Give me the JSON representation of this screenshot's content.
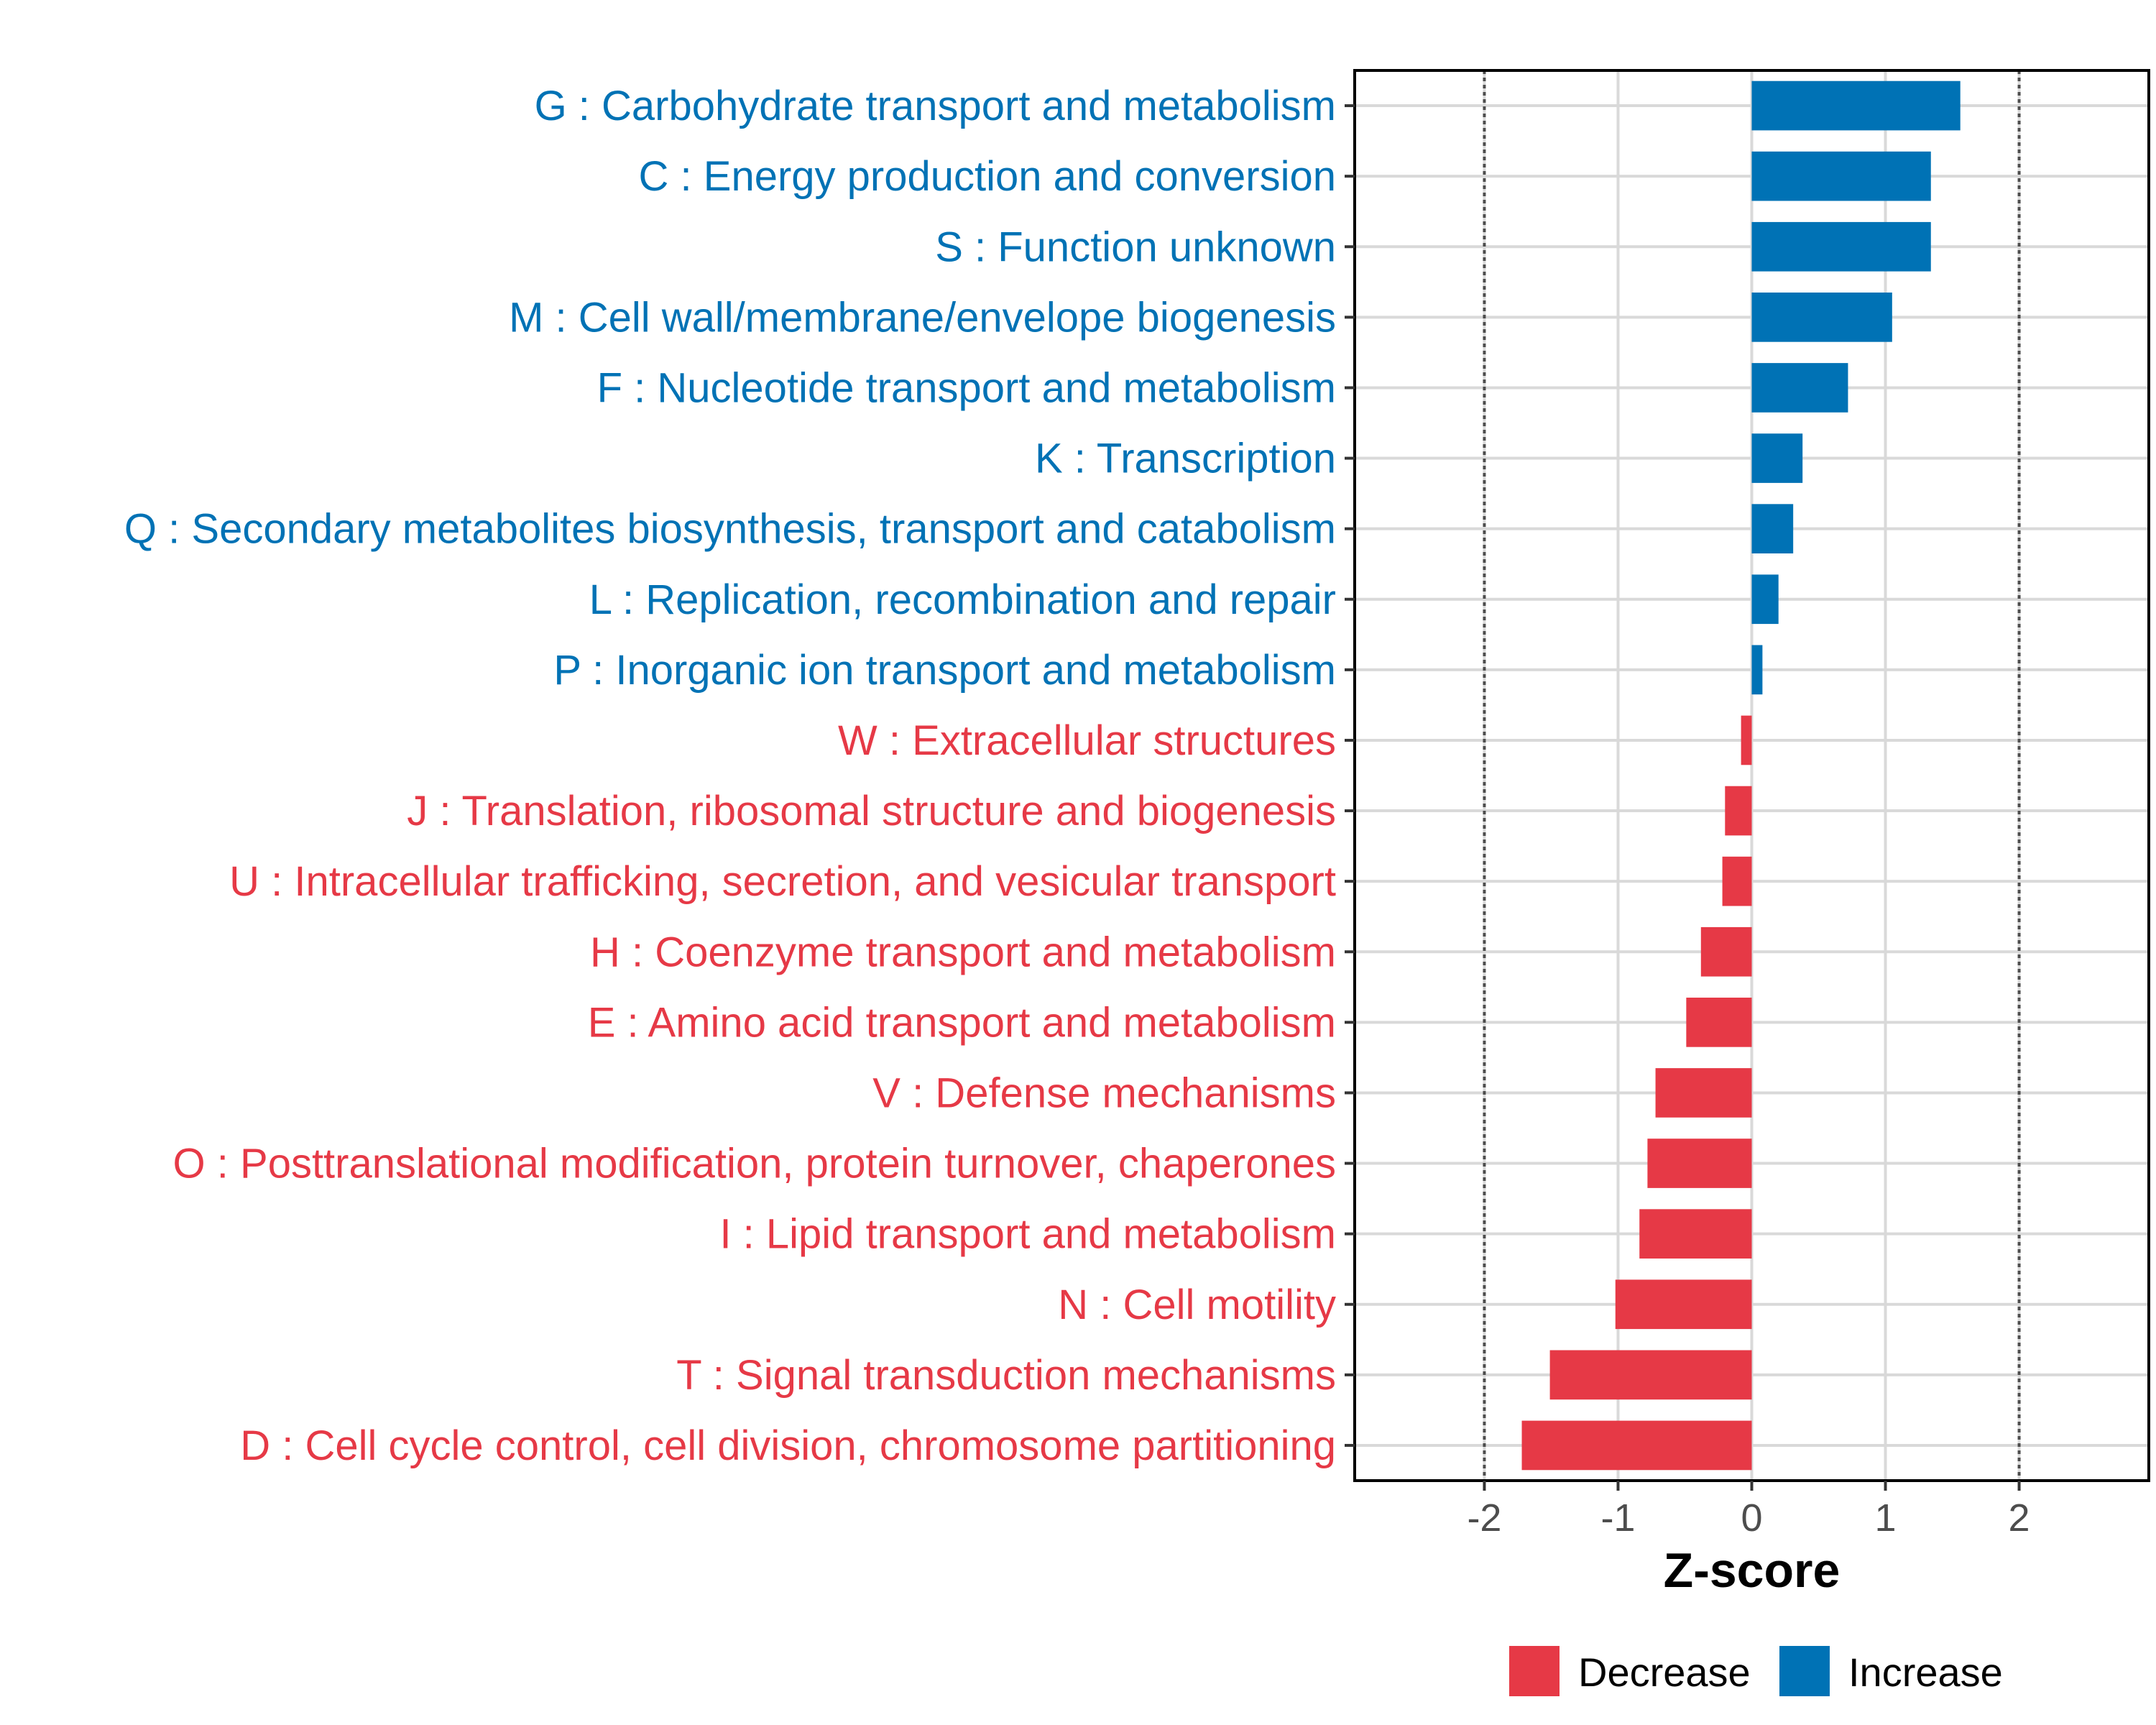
{
  "chart_data": {
    "type": "bar",
    "orientation": "horizontal",
    "title": "",
    "xlabel": "Z-score",
    "ylabel": "",
    "xlim": [
      -2.97,
      2.97
    ],
    "xticks": [
      -2,
      -1,
      0,
      1,
      2
    ],
    "xtick_labels": [
      "-2",
      "-1",
      "0",
      "1",
      "2"
    ],
    "reference_lines": [
      -2,
      2
    ],
    "grid": true,
    "legend_position": "bottom",
    "colors": {
      "increase": "#0072b5",
      "decrease": "#e63946"
    },
    "legend": [
      {
        "label": "Decrease",
        "color": "#e63946"
      },
      {
        "label": "Increase",
        "color": "#0072b5"
      }
    ],
    "categories": [
      "G : Carbohydrate transport and metabolism",
      "C : Energy production and conversion",
      "S : Function unknown",
      "M : Cell wall/membrane/envelope biogenesis",
      "F : Nucleotide transport and metabolism",
      "K : Transcription",
      "Q : Secondary metabolites biosynthesis, transport and catabolism",
      "L : Replication, recombination and repair",
      "P : Inorganic ion transport and metabolism",
      "W : Extracellular structures",
      "J : Translation, ribosomal structure and biogenesis",
      "U : Intracellular trafficking, secretion, and vesicular transport",
      "H : Coenzyme transport and metabolism",
      "E : Amino acid transport and metabolism",
      "V : Defense mechanisms",
      "O : Posttranslational modification, protein turnover, chaperones",
      "I : Lipid transport and metabolism",
      "N : Cell motility",
      "T : Signal transduction mechanisms",
      "D : Cell cycle control, cell division, chromosome partitioning"
    ],
    "values": [
      1.56,
      1.34,
      1.34,
      1.05,
      0.72,
      0.38,
      0.31,
      0.2,
      0.08,
      -0.08,
      -0.2,
      -0.22,
      -0.38,
      -0.49,
      -0.72,
      -0.78,
      -0.84,
      -1.02,
      -1.51,
      -1.72
    ]
  }
}
